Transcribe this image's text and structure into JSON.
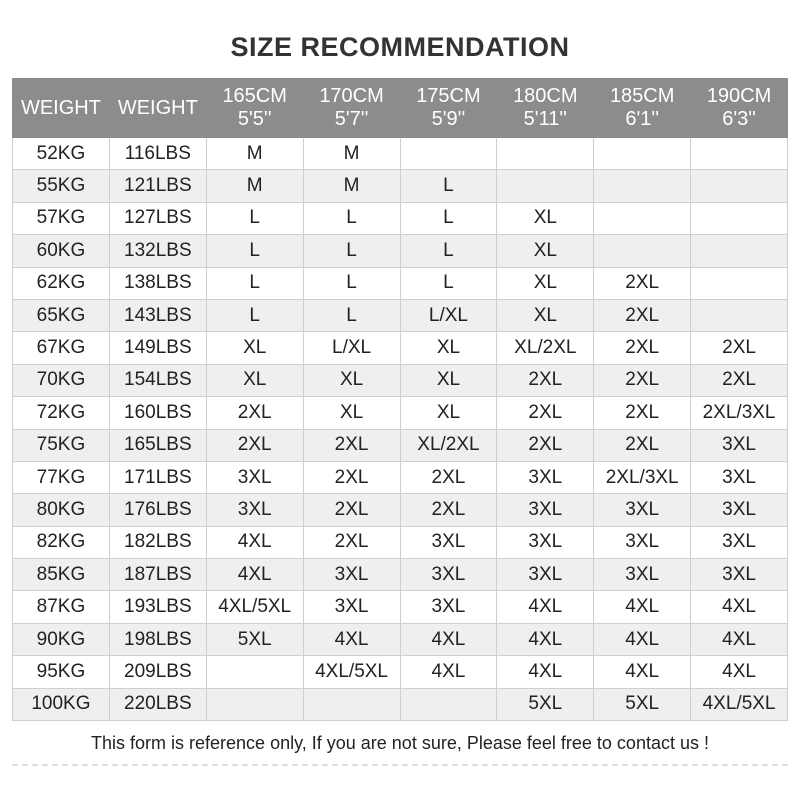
{
  "title": "SIZE RECOMMENDATION",
  "table": {
    "header": [
      [
        "WEIGHT"
      ],
      [
        "WEIGHT"
      ],
      [
        "165CM",
        "5'5''"
      ],
      [
        "170CM",
        "5'7''"
      ],
      [
        "175CM",
        "5'9''"
      ],
      [
        "180CM",
        "5'11''"
      ],
      [
        "185CM",
        "6'1''"
      ],
      [
        "190CM",
        "6'3''"
      ]
    ],
    "rows": [
      [
        "52KG",
        "116LBS",
        "M",
        "M",
        null,
        null,
        null,
        null
      ],
      [
        "55KG",
        "121LBS",
        "M",
        "M",
        "L",
        null,
        null,
        null
      ],
      [
        "57KG",
        "127LBS",
        "L",
        "L",
        "L",
        "XL",
        null,
        null
      ],
      [
        "60KG",
        "132LBS",
        "L",
        "L",
        "L",
        "XL",
        null,
        null
      ],
      [
        "62KG",
        "138LBS",
        "L",
        "L",
        "L",
        "XL",
        "2XL",
        null
      ],
      [
        "65KG",
        "143LBS",
        "L",
        "L",
        "L/XL",
        "XL",
        "2XL",
        null
      ],
      [
        "67KG",
        "149LBS",
        "XL",
        "L/XL",
        "XL",
        "XL/2XL",
        "2XL",
        "2XL"
      ],
      [
        "70KG",
        "154LBS",
        "XL",
        "XL",
        "XL",
        "2XL",
        "2XL",
        "2XL"
      ],
      [
        "72KG",
        "160LBS",
        "2XL",
        "XL",
        "XL",
        "2XL",
        "2XL",
        "2XL/3XL"
      ],
      [
        "75KG",
        "165LBS",
        "2XL",
        "2XL",
        "XL/2XL",
        "2XL",
        "2XL",
        "3XL"
      ],
      [
        "77KG",
        "171LBS",
        "3XL",
        "2XL",
        "2XL",
        "3XL",
        "2XL/3XL",
        "3XL"
      ],
      [
        "80KG",
        "176LBS",
        "3XL",
        "2XL",
        "2XL",
        "3XL",
        "3XL",
        "3XL"
      ],
      [
        "82KG",
        "182LBS",
        "4XL",
        "2XL",
        "3XL",
        "3XL",
        "3XL",
        "3XL"
      ],
      [
        "85KG",
        "187LBS",
        "4XL",
        "3XL",
        "3XL",
        "3XL",
        "3XL",
        "3XL"
      ],
      [
        "87KG",
        "193LBS",
        "4XL/5XL",
        "3XL",
        "3XL",
        "4XL",
        "4XL",
        "4XL"
      ],
      [
        "90KG",
        "198LBS",
        "5XL",
        "4XL",
        "4XL",
        "4XL",
        "4XL",
        "4XL"
      ],
      [
        "95KG",
        "209LBS",
        null,
        "4XL/5XL",
        "4XL",
        "4XL",
        "4XL",
        "4XL"
      ],
      [
        "100KG",
        "220LBS",
        null,
        null,
        null,
        "5XL",
        "5XL",
        "4XL/5XL"
      ]
    ]
  },
  "footer": "This form is reference only, If you are not sure, Please feel free to contact us !"
}
